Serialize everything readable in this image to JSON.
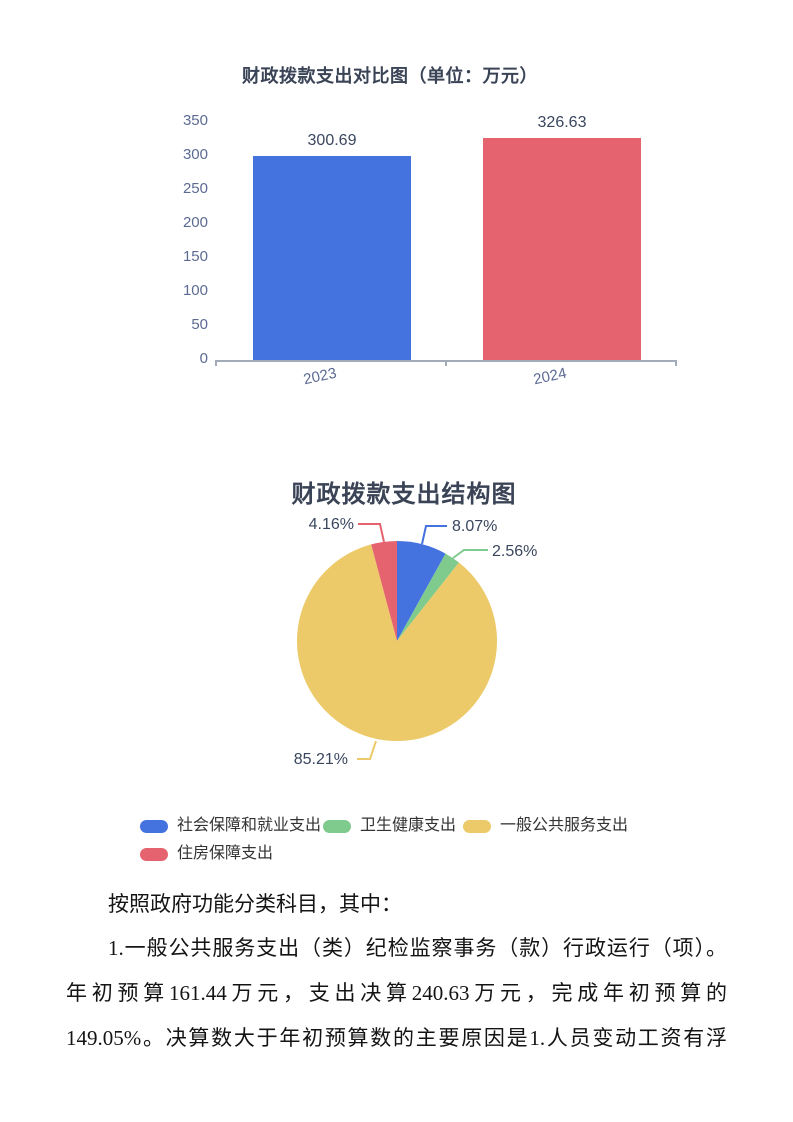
{
  "chart_data": [
    {
      "type": "bar",
      "title": "财政拨款支出对比图（单位：万元）",
      "categories": [
        "2023",
        "2024"
      ],
      "values": [
        300.69,
        326.63
      ],
      "value_labels": [
        "300.69",
        "326.63"
      ],
      "colors": [
        "#4472de",
        "#e5636f"
      ],
      "ylim": [
        0,
        350
      ],
      "y_ticks": [
        "350",
        "300",
        "250",
        "200",
        "150",
        "100",
        "50",
        "0"
      ],
      "grid": false,
      "legend_position": "none"
    },
    {
      "type": "pie",
      "title": "财政拨款支出结构图",
      "start_angle": "12-oclock",
      "direction": "clockwise",
      "legend_position": "bottom",
      "slices": [
        {
          "label": "社会保障和就业支出",
          "value_pct": 8.07,
          "pct_label": "8.07%",
          "color": "#4472de"
        },
        {
          "label": "卫生健康支出",
          "value_pct": 2.56,
          "pct_label": "2.56%",
          "color": "#7fca8d"
        },
        {
          "label": "一般公共服务支出",
          "value_pct": 85.21,
          "pct_label": "85.21%",
          "color": "#ecca69"
        },
        {
          "label": "住房保障支出",
          "value_pct": 4.16,
          "pct_label": "4.16%",
          "color": "#e5636f"
        }
      ]
    }
  ],
  "document": {
    "paragraph_intro": "按照政府功能分类科目，其中：",
    "paragraph_lines": [
      "1.一般公共服务支出（类）纪检监察事务（款）行政运行（项）。",
      "年初预算161.44万元，支出决算240.63万元，完成年初预算的",
      "149.05%。决算数大于年初预算数的主要原因是1.人员变动工资有浮"
    ]
  }
}
